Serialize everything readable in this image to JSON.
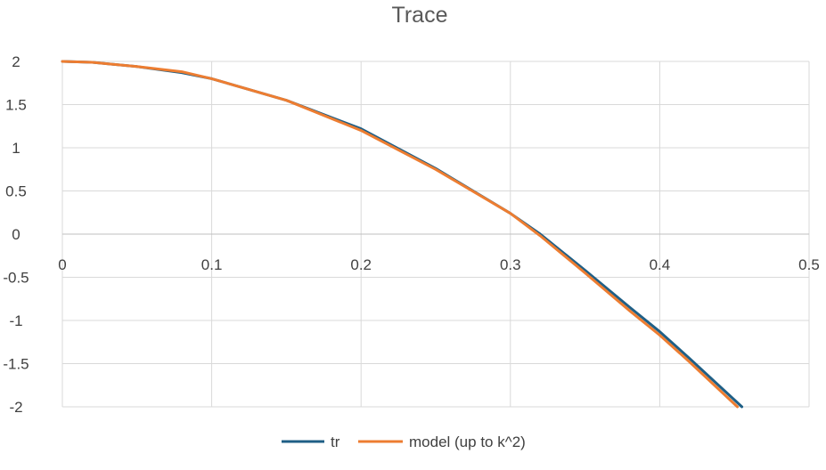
{
  "chart_data": {
    "type": "line",
    "title": "Trace",
    "xlabel": "",
    "ylabel": "",
    "xlim": [
      0,
      0.5
    ],
    "ylim": [
      -2,
      2
    ],
    "x_ticks": [
      "0",
      "0.1",
      "0.2",
      "0.3",
      "0.4",
      "0.5"
    ],
    "y_ticks": [
      "2",
      "1.5",
      "1",
      "0.5",
      "0",
      "-0.5",
      "-1",
      "-1.5",
      "-2"
    ],
    "grid": true,
    "legend_position": "bottom",
    "series": [
      {
        "name": "tr",
        "color": "#1f5f86",
        "x": [
          0,
          0.02,
          0.05,
          0.08,
          0.1,
          0.15,
          0.2,
          0.25,
          0.3,
          0.32,
          0.35,
          0.38,
          0.4,
          0.42,
          0.455
        ],
        "y": [
          2.0,
          1.99,
          1.94,
          1.87,
          1.8,
          1.55,
          1.22,
          0.76,
          0.24,
          0.0,
          -0.42,
          -0.85,
          -1.13,
          -1.44,
          -2.0
        ]
      },
      {
        "name": "model (up to k^2)",
        "color": "#ed7d31",
        "x": [
          0,
          0.02,
          0.05,
          0.08,
          0.1,
          0.15,
          0.2,
          0.25,
          0.3,
          0.32,
          0.35,
          0.38,
          0.4,
          0.42,
          0.452
        ],
        "y": [
          2.0,
          1.99,
          1.94,
          1.88,
          1.8,
          1.55,
          1.2,
          0.75,
          0.24,
          -0.02,
          -0.45,
          -0.89,
          -1.17,
          -1.48,
          -2.0
        ]
      }
    ]
  }
}
